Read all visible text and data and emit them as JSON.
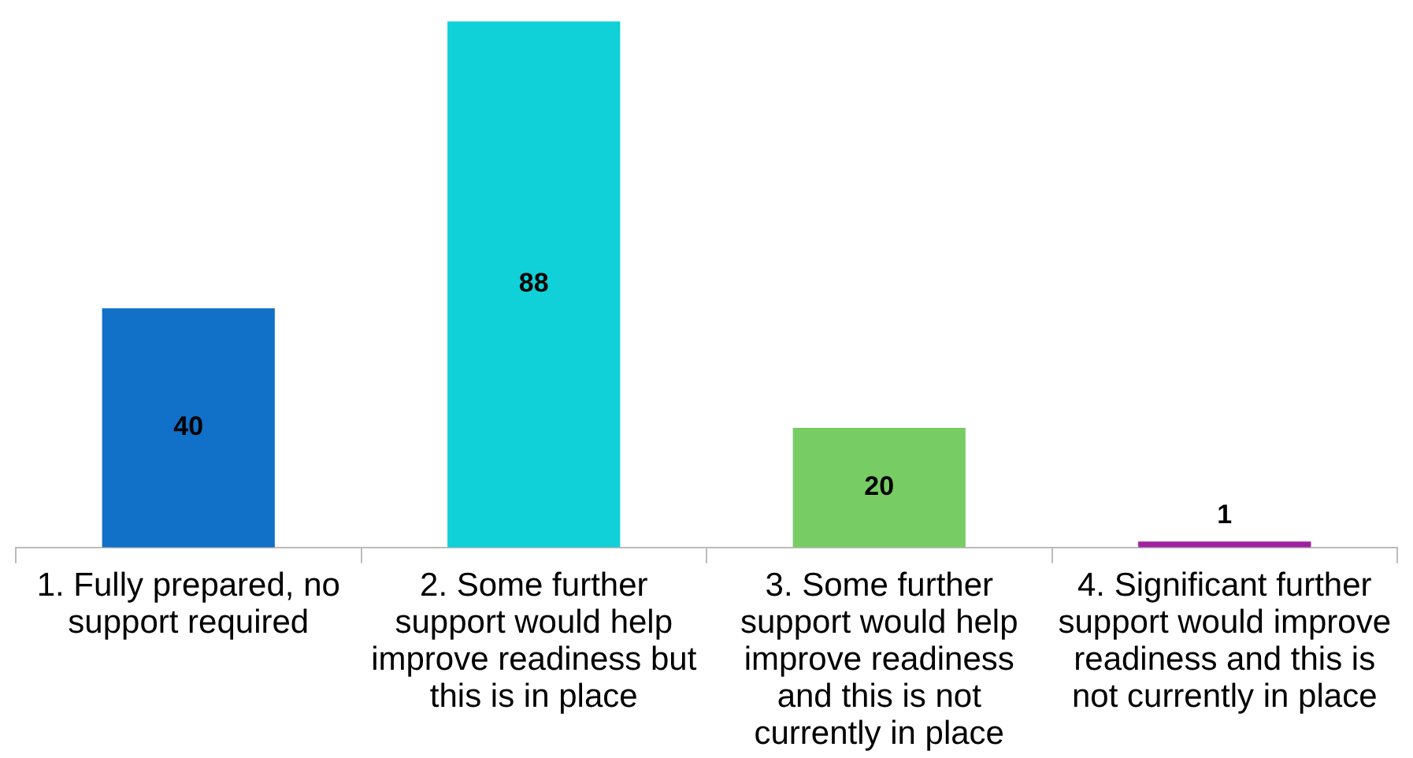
{
  "chart_data": {
    "type": "bar",
    "categories": [
      "1. Fully prepared, no support required",
      "2. Some further support would help improve readiness but this is in place",
      "3. Some further support would help improve readiness and this is not currently in place",
      "4. Significant further support would improve readiness and this is not currently in place"
    ],
    "values": [
      40,
      88,
      20,
      1
    ],
    "colors": [
      "#1170c8",
      "#10d0d8",
      "#78cc64",
      "#a0229e"
    ],
    "data_labels": true,
    "legend": false,
    "grid": false
  }
}
